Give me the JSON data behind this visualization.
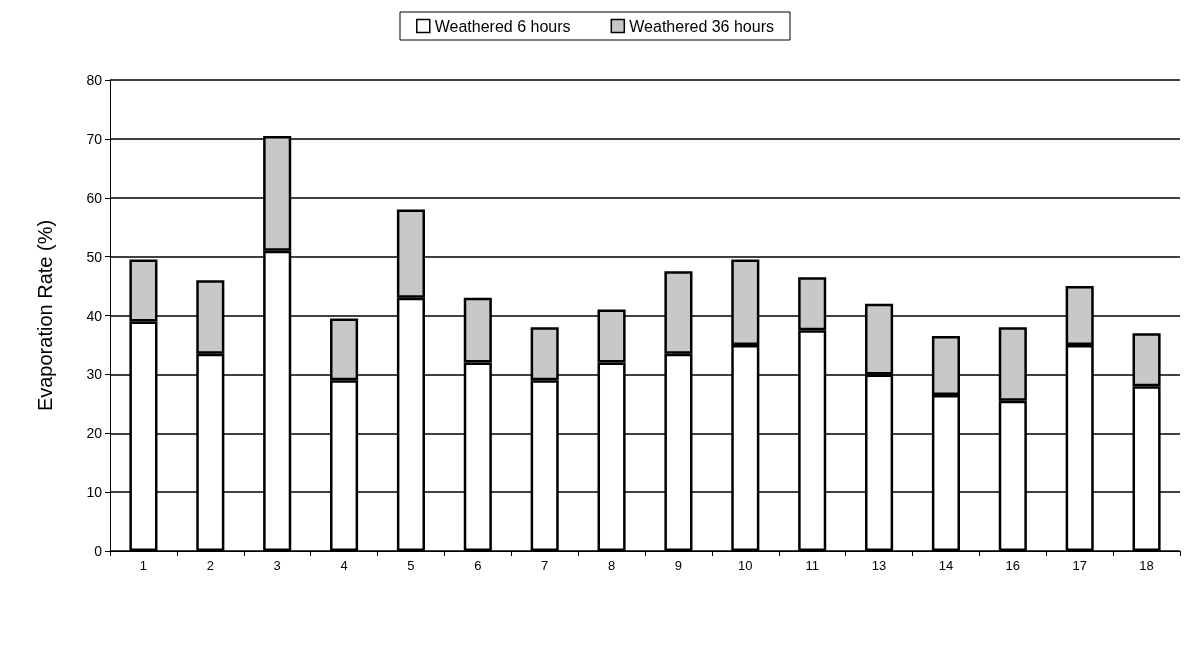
{
  "chart_data": {
    "type": "bar",
    "stacked": true,
    "ylabel": "Evaporation Rate (%)",
    "categories": [
      "1",
      "2",
      "3",
      "4",
      "5",
      "6",
      "7",
      "8",
      "9",
      "10",
      "11",
      "13",
      "14",
      "16",
      "17",
      "18"
    ],
    "series": [
      {
        "name": "Weathered 6 hours",
        "color": "#ffffff",
        "values": [
          39,
          33.5,
          51,
          29,
          43,
          32,
          29,
          32,
          33.5,
          35,
          37.5,
          30,
          26.5,
          25.5,
          35,
          28
        ]
      },
      {
        "name": "Weathered 36 hours",
        "color": "#c8c8c8",
        "values": [
          10.5,
          12.5,
          19.5,
          10.5,
          15,
          11,
          9,
          9,
          14,
          14.5,
          9,
          12,
          10,
          12.5,
          10,
          9
        ]
      }
    ],
    "ylim": [
      0,
      80
    ],
    "yticks": [
      0,
      10,
      20,
      30,
      40,
      50,
      60,
      70,
      80
    ],
    "grid": "y",
    "legend": "top"
  }
}
